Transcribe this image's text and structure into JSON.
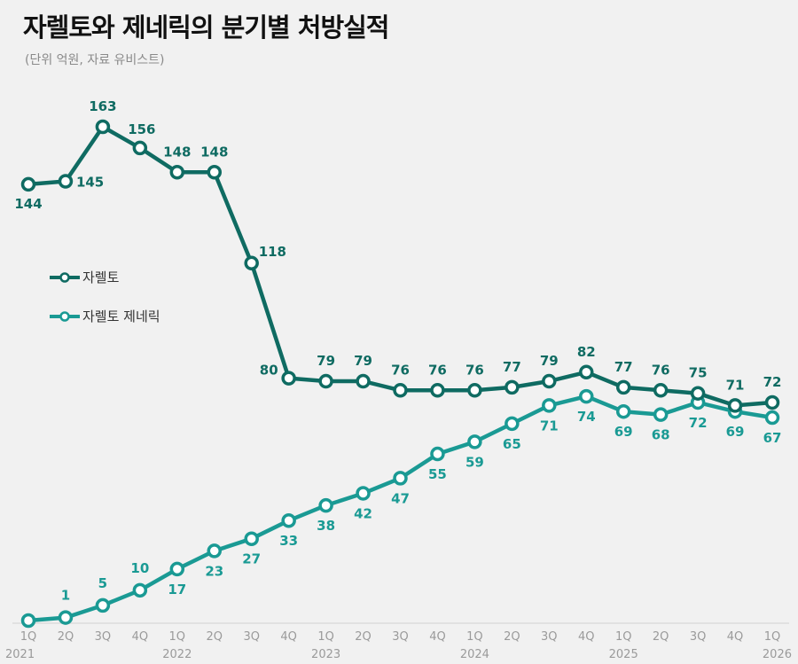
{
  "chart_data": {
    "type": "line",
    "title": "자렐토와 제네릭의 분기별 처방실적",
    "subtitle": "(단위 억원, 자료 유비스트)",
    "xlabel": "",
    "ylabel": "",
    "ylim": [
      0,
      163
    ],
    "grid": false,
    "legend_placement": "left",
    "categories": [
      "1Q",
      "2Q",
      "3Q",
      "4Q",
      "1Q",
      "2Q",
      "3Q",
      "4Q",
      "1Q",
      "2Q",
      "3Q",
      "4Q",
      "1Q",
      "2Q",
      "3Q",
      "4Q",
      "1Q",
      "2Q",
      "3Q",
      "4Q",
      "1Q"
    ],
    "years": [
      {
        "label": "2021",
        "index": 0
      },
      {
        "label": "2022",
        "index": 4
      },
      {
        "label": "2023",
        "index": 8
      },
      {
        "label": "2024",
        "index": 12
      },
      {
        "label": "2025",
        "index": 16
      },
      {
        "label": "2026",
        "index": 20
      }
    ],
    "series": [
      {
        "name": "자렐토",
        "color": "#0f6b62",
        "values": [
          144,
          145,
          163,
          156,
          148,
          148,
          118,
          80,
          79,
          79,
          76,
          76,
          76,
          77,
          79,
          82,
          77,
          76,
          75,
          71,
          72
        ],
        "labels": [
          "144",
          "145",
          "163",
          "156",
          "148",
          "148",
          "118",
          "80",
          "79",
          "79",
          "76",
          "76",
          "76",
          "77",
          "79",
          "82",
          "77",
          "76",
          "75",
          "71",
          "72"
        ]
      },
      {
        "name": "자렐토 제네릭",
        "color": "#1a9a94",
        "values": [
          0,
          1,
          5,
          10,
          17,
          23,
          27,
          33,
          38,
          42,
          47,
          55,
          59,
          65,
          71,
          74,
          69,
          68,
          72,
          69,
          67
        ],
        "labels": [
          "",
          "1",
          "5",
          "10",
          "17",
          "23",
          "27",
          "33",
          "38",
          "42",
          "47",
          "55",
          "59",
          "65",
          "71",
          "74",
          "69",
          "68",
          "72",
          "69",
          "67"
        ]
      }
    ]
  }
}
